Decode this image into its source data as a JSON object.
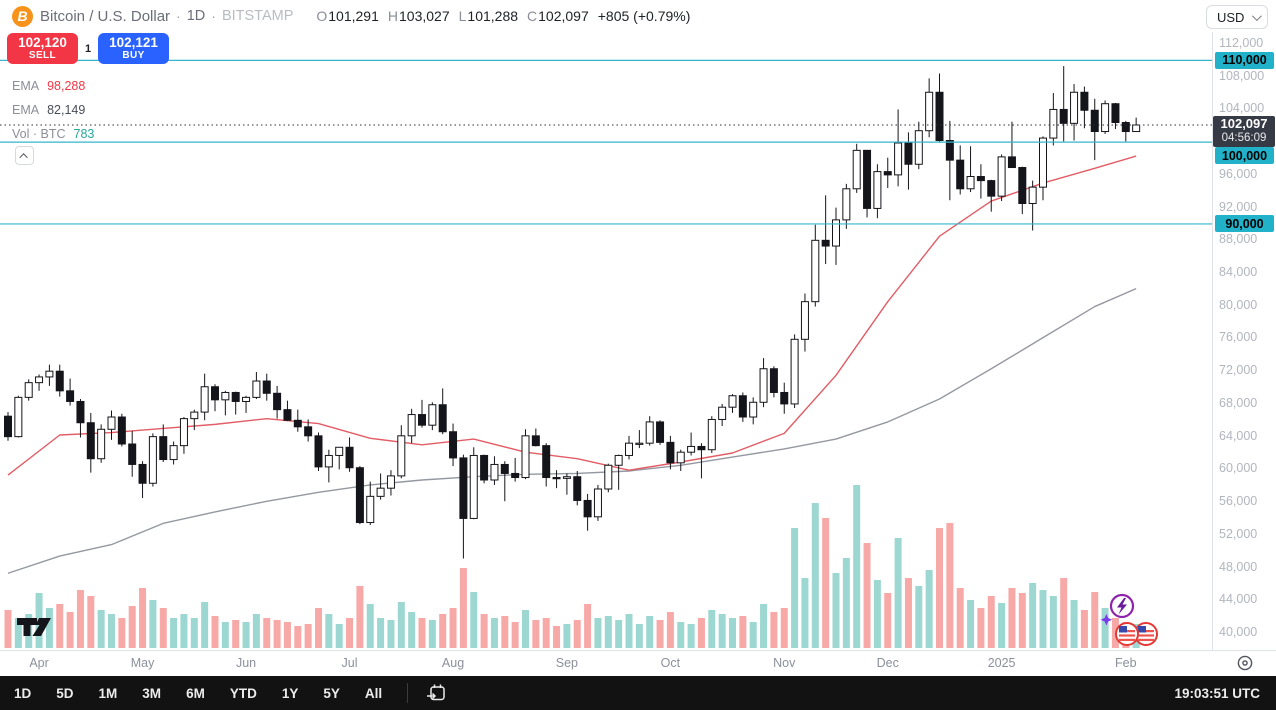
{
  "top_bar": {
    "logo_letter": "B",
    "symbol_title": "Bitcoin / U.S. Dollar",
    "separator": "·",
    "interval": "1D",
    "exchange": "BITSTAMP",
    "ohlc": {
      "o_label": "O",
      "o_value": "101,291",
      "h_label": "H",
      "h_value": "103,027",
      "l_label": "L",
      "l_value": "101,288",
      "c_label": "C",
      "c_value": "102,097",
      "change": "+805 (+0.79%)"
    },
    "currency_button": {
      "label": "USD"
    }
  },
  "order_panel": {
    "sell_price": "102,120",
    "sell_label": "SELL",
    "spread": "1",
    "buy_price": "102,121",
    "buy_label": "BUY"
  },
  "legend": {
    "rows": [
      {
        "label": "EMA",
        "value": "98,288",
        "value_color": "red"
      },
      {
        "label": "EMA",
        "value": "82,149",
        "value_color": "dark"
      },
      {
        "label": "Vol · BTC",
        "value": "783",
        "value_color": "teal"
      }
    ]
  },
  "price_scale": {
    "tick_labels": [
      "112,000",
      "108,000",
      "104,000",
      "100,000",
      "96,000",
      "92,000",
      "88,000",
      "84,000",
      "80,000",
      "76,000",
      "72,000",
      "68,000",
      "64,000",
      "60,000",
      "56,000",
      "52,000",
      "48,000",
      "44,000",
      "40,000"
    ],
    "last_price_label": {
      "price": "102,097",
      "countdown": "04:56:09"
    }
  },
  "toolbar": {
    "ranges": [
      "1D",
      "5D",
      "1M",
      "3M",
      "6M",
      "YTD",
      "1Y",
      "5Y",
      "All"
    ],
    "clock": "19:03:51 UTC"
  },
  "chart_data": {
    "type": "candlestick",
    "title": "Bitcoin / U.S. Dollar, 1D, BITSTAMP",
    "price_unit": "USD",
    "y_axis": {
      "min": 40000,
      "max": 112000,
      "tick_step": 4000
    },
    "grid": false,
    "x_axis_months": [
      {
        "label": "Apr",
        "candle_index": 3
      },
      {
        "label": "May",
        "candle_index": 13
      },
      {
        "label": "Jun",
        "candle_index": 23
      },
      {
        "label": "Jul",
        "candle_index": 33
      },
      {
        "label": "Aug",
        "candle_index": 43
      },
      {
        "label": "Sep",
        "candle_index": 54
      },
      {
        "label": "Oct",
        "candle_index": 64
      },
      {
        "label": "Nov",
        "candle_index": 75
      },
      {
        "label": "Dec",
        "candle_index": 85
      },
      {
        "label": "2025",
        "candle_index": 96
      },
      {
        "label": "Feb",
        "candle_index": 108
      }
    ],
    "candles_ohlc_kusd": [
      [
        66.5,
        67.0,
        63.5,
        64.0
      ],
      [
        64.0,
        69.0,
        63.9,
        68.8
      ],
      [
        68.8,
        71.0,
        68.4,
        70.6
      ],
      [
        70.6,
        71.6,
        69.6,
        71.3
      ],
      [
        71.3,
        72.8,
        70.2,
        72.0
      ],
      [
        72.0,
        72.8,
        68.9,
        69.6
      ],
      [
        69.6,
        71.1,
        67.8,
        68.3
      ],
      [
        68.3,
        68.6,
        63.9,
        65.7
      ],
      [
        65.7,
        66.9,
        59.6,
        61.3
      ],
      [
        61.3,
        65.5,
        60.8,
        64.9
      ],
      [
        64.9,
        67.2,
        63.6,
        66.4
      ],
      [
        66.4,
        66.8,
        62.8,
        63.1
      ],
      [
        63.1,
        64.7,
        59.1,
        60.6
      ],
      [
        60.6,
        61.0,
        56.5,
        58.3
      ],
      [
        58.3,
        64.4,
        57.9,
        64.0
      ],
      [
        64.0,
        65.5,
        60.9,
        61.2
      ],
      [
        61.2,
        63.4,
        60.6,
        62.9
      ],
      [
        62.9,
        66.4,
        61.9,
        66.2
      ],
      [
        66.2,
        67.3,
        64.8,
        67.0
      ],
      [
        67.0,
        71.7,
        66.0,
        70.1
      ],
      [
        70.1,
        70.4,
        67.1,
        68.5
      ],
      [
        68.5,
        69.6,
        66.6,
        69.4
      ],
      [
        69.4,
        69.5,
        66.7,
        68.3
      ],
      [
        68.3,
        69.0,
        66.9,
        68.8
      ],
      [
        68.8,
        71.9,
        68.6,
        70.8
      ],
      [
        70.8,
        71.7,
        68.4,
        69.3
      ],
      [
        69.3,
        70.2,
        66.2,
        67.3
      ],
      [
        67.3,
        68.4,
        65.9,
        66.0
      ],
      [
        66.0,
        67.3,
        64.6,
        65.2
      ],
      [
        65.2,
        66.1,
        63.4,
        64.1
      ],
      [
        64.1,
        64.5,
        59.8,
        60.3
      ],
      [
        60.3,
        62.4,
        58.4,
        61.7
      ],
      [
        61.7,
        62.2,
        60.0,
        62.7
      ],
      [
        62.7,
        63.9,
        59.7,
        60.2
      ],
      [
        60.2,
        60.4,
        53.3,
        53.5
      ],
      [
        53.5,
        58.5,
        53.2,
        56.7
      ],
      [
        56.7,
        59.5,
        56.3,
        57.7
      ],
      [
        57.7,
        59.9,
        56.8,
        59.2
      ],
      [
        59.2,
        65.4,
        58.9,
        64.1
      ],
      [
        64.1,
        67.4,
        63.2,
        66.7
      ],
      [
        66.7,
        68.5,
        65.1,
        65.4
      ],
      [
        65.4,
        68.2,
        64.8,
        67.9
      ],
      [
        67.9,
        69.9,
        64.3,
        64.6
      ],
      [
        64.6,
        65.6,
        60.4,
        61.4
      ],
      [
        61.4,
        61.8,
        49.1,
        54.0
      ],
      [
        54.0,
        62.7,
        53.9,
        61.7
      ],
      [
        61.7,
        61.8,
        58.3,
        58.7
      ],
      [
        58.7,
        61.6,
        58.1,
        60.6
      ],
      [
        60.6,
        61.0,
        56.1,
        59.5
      ],
      [
        59.5,
        61.4,
        58.5,
        59.0
      ],
      [
        59.0,
        64.9,
        58.8,
        64.1
      ],
      [
        64.1,
        65.0,
        62.8,
        62.9
      ],
      [
        62.9,
        63.2,
        57.9,
        59.0
      ],
      [
        59.0,
        59.9,
        57.7,
        58.9
      ],
      [
        58.9,
        59.5,
        56.9,
        59.1
      ],
      [
        59.1,
        59.8,
        55.6,
        56.2
      ],
      [
        56.2,
        57.0,
        52.5,
        54.2
      ],
      [
        54.2,
        58.1,
        53.7,
        57.6
      ],
      [
        57.6,
        60.7,
        57.2,
        60.5
      ],
      [
        60.5,
        61.8,
        57.5,
        61.7
      ],
      [
        61.7,
        64.1,
        61.2,
        63.2
      ],
      [
        63.2,
        64.8,
        62.6,
        63.2
      ],
      [
        63.2,
        66.5,
        62.9,
        65.8
      ],
      [
        65.8,
        66.0,
        63.0,
        63.3
      ],
      [
        63.3,
        64.1,
        60.0,
        60.8
      ],
      [
        60.8,
        62.4,
        59.8,
        62.1
      ],
      [
        62.1,
        64.5,
        61.7,
        62.8
      ],
      [
        62.8,
        63.2,
        58.9,
        62.4
      ],
      [
        62.4,
        66.5,
        62.0,
        66.1
      ],
      [
        66.1,
        68.0,
        65.3,
        67.6
      ],
      [
        67.6,
        69.2,
        66.9,
        69.0
      ],
      [
        69.0,
        69.4,
        65.8,
        66.4
      ],
      [
        66.4,
        68.8,
        65.5,
        68.2
      ],
      [
        68.2,
        73.6,
        67.6,
        72.3
      ],
      [
        72.3,
        72.6,
        68.8,
        69.4
      ],
      [
        69.4,
        70.6,
        66.8,
        68.0
      ],
      [
        68.0,
        76.5,
        67.5,
        75.9
      ],
      [
        75.9,
        81.5,
        74.4,
        80.5
      ],
      [
        80.5,
        89.9,
        79.9,
        88.0
      ],
      [
        88.0,
        93.5,
        85.1,
        87.3
      ],
      [
        87.3,
        92.0,
        85.0,
        90.5
      ],
      [
        90.5,
        94.9,
        89.4,
        94.3
      ],
      [
        94.3,
        99.8,
        93.8,
        99.0
      ],
      [
        99.0,
        99.0,
        90.8,
        91.9
      ],
      [
        91.9,
        97.3,
        90.7,
        96.4
      ],
      [
        96.4,
        98.1,
        94.4,
        96.0
      ],
      [
        96.0,
        104.0,
        94.6,
        99.9
      ],
      [
        99.9,
        101.2,
        94.2,
        97.3
      ],
      [
        97.3,
        102.5,
        96.7,
        101.4
      ],
      [
        101.4,
        107.8,
        100.6,
        106.1
      ],
      [
        106.1,
        108.4,
        100.0,
        100.2
      ],
      [
        100.2,
        102.6,
        92.9,
        97.8
      ],
      [
        97.8,
        99.6,
        93.6,
        94.3
      ],
      [
        94.3,
        99.5,
        93.9,
        95.8
      ],
      [
        95.8,
        97.3,
        93.1,
        95.3
      ],
      [
        95.3,
        95.4,
        91.5,
        93.4
      ],
      [
        93.4,
        98.5,
        92.8,
        98.2
      ],
      [
        98.2,
        102.5,
        97.6,
        96.9
      ],
      [
        96.9,
        97.0,
        91.2,
        92.5
      ],
      [
        92.5,
        95.3,
        89.2,
        94.5
      ],
      [
        94.5,
        100.7,
        92.9,
        100.5
      ],
      [
        100.5,
        106.0,
        99.6,
        104.0
      ],
      [
        104.0,
        109.3,
        100.1,
        102.3
      ],
      [
        102.3,
        107.1,
        100.2,
        106.1
      ],
      [
        106.1,
        106.8,
        101.7,
        103.9
      ],
      [
        103.9,
        105.3,
        97.8,
        101.3
      ],
      [
        101.3,
        105.1,
        101.0,
        104.7
      ],
      [
        104.7,
        104.8,
        101.6,
        102.4
      ],
      [
        102.4,
        102.6,
        100.1,
        101.3
      ],
      [
        101.3,
        103.0,
        101.3,
        102.1
      ]
    ],
    "volume_rel": [
      38,
      30,
      34,
      55,
      40,
      44,
      36,
      58,
      52,
      38,
      34,
      30,
      42,
      60,
      48,
      40,
      30,
      34,
      30,
      46,
      32,
      26,
      28,
      26,
      34,
      30,
      28,
      26,
      22,
      24,
      40,
      34,
      24,
      30,
      62,
      44,
      30,
      28,
      46,
      36,
      30,
      28,
      34,
      40,
      80,
      56,
      34,
      30,
      32,
      26,
      38,
      28,
      30,
      22,
      24,
      28,
      44,
      30,
      32,
      28,
      34,
      24,
      32,
      28,
      36,
      26,
      24,
      30,
      38,
      34,
      30,
      32,
      26,
      44,
      36,
      40,
      120,
      70,
      145,
      130,
      75,
      90,
      163,
      105,
      68,
      55,
      110,
      70,
      62,
      78,
      120,
      125,
      60,
      48,
      40,
      52,
      45,
      60,
      55,
      65,
      58,
      52,
      70,
      48,
      38,
      56,
      40,
      30,
      26,
      24
    ],
    "volume_colors": {
      "up": "rgba(38,166,154,0.45)",
      "down": "rgba(239,83,80,0.5)"
    },
    "candle_colors": {
      "up_fill": "#ffffff",
      "down_fill": "#14151a",
      "border": "#14151a"
    },
    "ema_fast": {
      "label": "EMA",
      "current": 98288,
      "color": "#e25d66",
      "index_step": 5,
      "points_kusd": [
        59.3,
        64.2,
        64.5,
        65.0,
        65.5,
        66.2,
        65.6,
        63.8,
        63.0,
        63.7,
        62.1,
        61.3,
        59.9,
        60.9,
        62.0,
        64.4,
        71.5,
        80.5,
        88.5,
        92.8,
        95.0,
        96.8,
        98.3
      ]
    },
    "ema_slow": {
      "label": "EMA",
      "current": 82149,
      "color": "#9598a1",
      "index_step": 5,
      "points_kusd": [
        47.3,
        49.4,
        50.8,
        53.4,
        54.8,
        56.1,
        57.2,
        58.1,
        58.7,
        59.1,
        59.4,
        59.5,
        59.8,
        60.5,
        61.5,
        62.5,
        63.7,
        65.8,
        68.6,
        72.3,
        76.1,
        79.9,
        82.1
      ]
    },
    "levels": [
      {
        "price_kusd": 110,
        "label": "110,000"
      },
      {
        "price_kusd": 100,
        "label": "100,000"
      },
      {
        "price_kusd": 90,
        "label": "90,000"
      }
    ],
    "level_color": "#35b6cc",
    "last_price": {
      "value_kusd": 102.097,
      "label": "102,097",
      "countdown": "04:56:09",
      "line_color": "#2a2e39"
    }
  }
}
